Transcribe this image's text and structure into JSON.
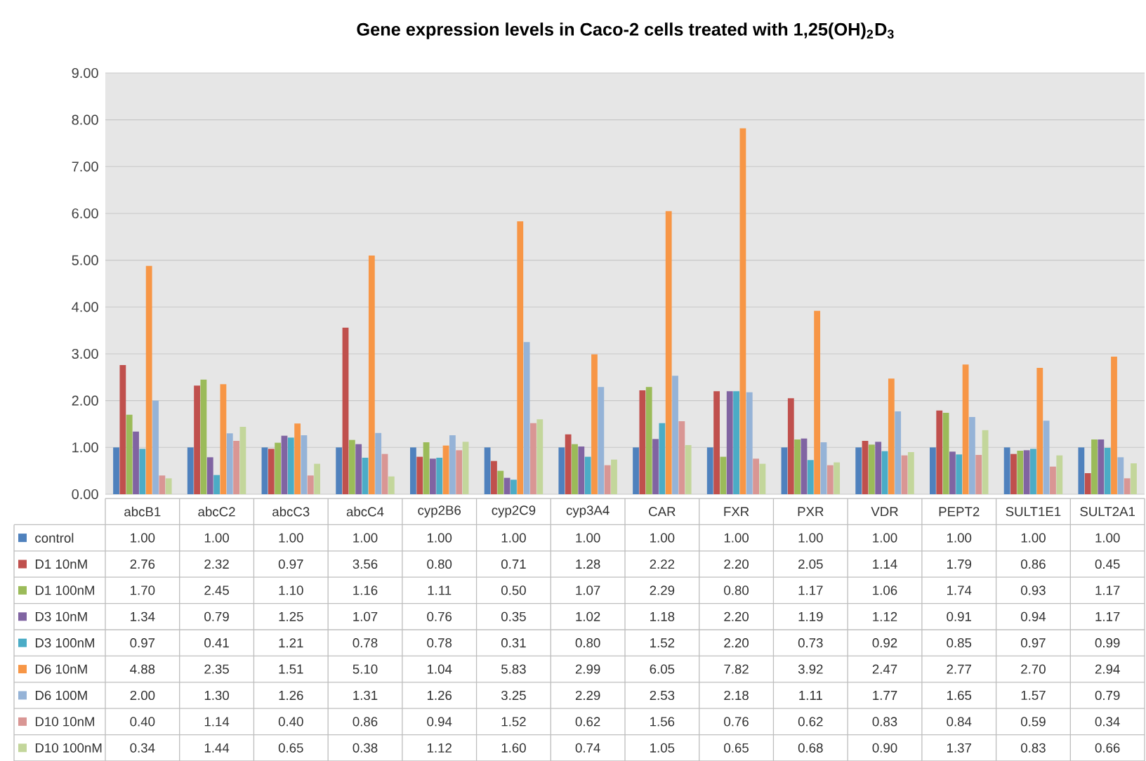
{
  "chart_data": {
    "type": "bar",
    "title": "Gene expression levels in Caco-2 cells treated with 1,25(OH)$_{2}$D$_{3}$",
    "categories": [
      "abcB1",
      "abcC2",
      "abcC3",
      "abcC4",
      "cyp2B6",
      "cyp2C9",
      "cyp3A4",
      "CAR",
      "FXR",
      "PXR",
      "VDR",
      "PEPT2",
      "SULT1E1",
      "SULT2A1"
    ],
    "series": [
      {
        "name": "control",
        "color": "#4f81bd",
        "values": [
          1.0,
          1.0,
          1.0,
          1.0,
          1.0,
          1.0,
          1.0,
          1.0,
          1.0,
          1.0,
          1.0,
          1.0,
          1.0,
          1.0
        ],
        "value_labels": [
          "1.00",
          "1.00",
          "1.00",
          "1.00",
          "1.00",
          "1.00",
          "1.00",
          "1.00",
          "1.00",
          "1.00",
          "1.00",
          "1.00",
          "1.00",
          "1.00"
        ]
      },
      {
        "name": "D1 10nM",
        "color": "#c0504d",
        "values": [
          2.76,
          2.32,
          0.97,
          3.56,
          0.8,
          0.71,
          1.28,
          2.22,
          2.2,
          2.05,
          1.14,
          1.79,
          0.86,
          0.45
        ],
        "value_labels": [
          "2.76",
          "2.32",
          "0.97",
          "3.56",
          "0.80",
          "0.71",
          "1.28",
          "2.22",
          "2.20",
          "2.05",
          "1.14",
          "1.79",
          "0.86",
          "0.45"
        ]
      },
      {
        "name": "D1 100nM",
        "color": "#9bbb59",
        "values": [
          1.7,
          2.45,
          1.1,
          1.16,
          1.11,
          0.5,
          1.07,
          2.29,
          0.8,
          1.17,
          1.06,
          1.74,
          0.93,
          1.17
        ],
        "value_labels": [
          "1.70",
          "2.45",
          "1.10",
          "1.16",
          "1.11",
          "0.50",
          "1.07",
          "2.29",
          "0.80",
          "1.17",
          "1.06",
          "1.74",
          "0.93",
          "1.17"
        ]
      },
      {
        "name": "D3 10nM",
        "color": "#8064a2",
        "values": [
          1.34,
          0.79,
          1.25,
          1.07,
          0.76,
          0.35,
          1.02,
          1.18,
          2.2,
          1.19,
          1.12,
          0.91,
          0.94,
          1.17
        ],
        "value_labels": [
          "1.34",
          "0.79",
          "1.25",
          "1.07",
          "0.76",
          "0.35",
          "1.02",
          "1.18",
          "2.20",
          "1.19",
          "1.12",
          "0.91",
          "0.94",
          "1.17"
        ]
      },
      {
        "name": "D3 100nM",
        "color": "#4bacc6",
        "values": [
          0.97,
          0.41,
          1.21,
          0.78,
          0.78,
          0.31,
          0.8,
          1.52,
          2.2,
          0.73,
          0.92,
          0.85,
          0.97,
          0.99
        ],
        "value_labels": [
          "0.97",
          "0.41",
          "1.21",
          "0.78",
          "0.78",
          "0.31",
          "0.80",
          "1.52",
          "2.20",
          "0.73",
          "0.92",
          "0.85",
          "0.97",
          "0.99"
        ]
      },
      {
        "name": "D6 10nM",
        "color": "#f79646",
        "values": [
          4.88,
          2.35,
          1.51,
          5.1,
          1.04,
          5.83,
          2.99,
          6.05,
          7.82,
          3.92,
          2.47,
          2.77,
          2.7,
          2.94
        ],
        "value_labels": [
          "4.88",
          "2.35",
          "1.51",
          "5.10",
          "1.04",
          "5.83",
          "2.99",
          "6.05",
          "7.82",
          "3.92",
          "2.47",
          "2.77",
          "2.70",
          "2.94"
        ]
      },
      {
        "name": "D6 100M",
        "color": "#95b3d7",
        "values": [
          2.0,
          1.3,
          1.26,
          1.31,
          1.26,
          3.25,
          2.29,
          2.53,
          2.18,
          1.11,
          1.77,
          1.65,
          1.57,
          0.79
        ],
        "value_labels": [
          "2.00",
          "1.30",
          "1.26",
          "1.31",
          "1.26",
          "3.25",
          "2.29",
          "2.53",
          "2.18",
          "1.11",
          "1.77",
          "1.65",
          "1.57",
          "0.79"
        ]
      },
      {
        "name": "D10 10nM",
        "color": "#d99694",
        "values": [
          0.4,
          1.14,
          0.4,
          0.86,
          0.94,
          1.52,
          0.62,
          1.56,
          0.76,
          0.62,
          0.83,
          0.84,
          0.59,
          0.34
        ],
        "value_labels": [
          "0.40",
          "1.14",
          "0.40",
          "0.86",
          "0.94",
          "1.52",
          "0.62",
          "1.56",
          "0.76",
          "0.62",
          "0.83",
          "0.84",
          "0.59",
          "0.34"
        ]
      },
      {
        "name": "D10 100nM",
        "color": "#c3d69b",
        "values": [
          0.34,
          1.44,
          0.65,
          0.38,
          1.12,
          1.6,
          0.74,
          1.05,
          0.65,
          0.68,
          0.9,
          1.37,
          0.83,
          0.66
        ],
        "value_labels": [
          "0.34",
          "1.44",
          "0.65",
          "0.38",
          "1.12",
          "1.60",
          "0.74",
          "1.05",
          "0.65",
          "0.68",
          "0.90",
          "1.37",
          "0.83",
          "0.66"
        ]
      }
    ],
    "ylim": [
      0,
      9
    ],
    "yticks": [
      {
        "value": 0,
        "label": "0.00"
      },
      {
        "value": 1,
        "label": "1.00"
      },
      {
        "value": 2,
        "label": "2.00"
      },
      {
        "value": 3,
        "label": "3.00"
      },
      {
        "value": 4,
        "label": "4.00"
      },
      {
        "value": 5,
        "label": "5.00"
      },
      {
        "value": 6,
        "label": "6.00"
      },
      {
        "value": 7,
        "label": "7.00"
      },
      {
        "value": 8,
        "label": "8.00"
      },
      {
        "value": 9,
        "label": "9.00"
      }
    ],
    "grid": "y",
    "legend": "bottom"
  }
}
